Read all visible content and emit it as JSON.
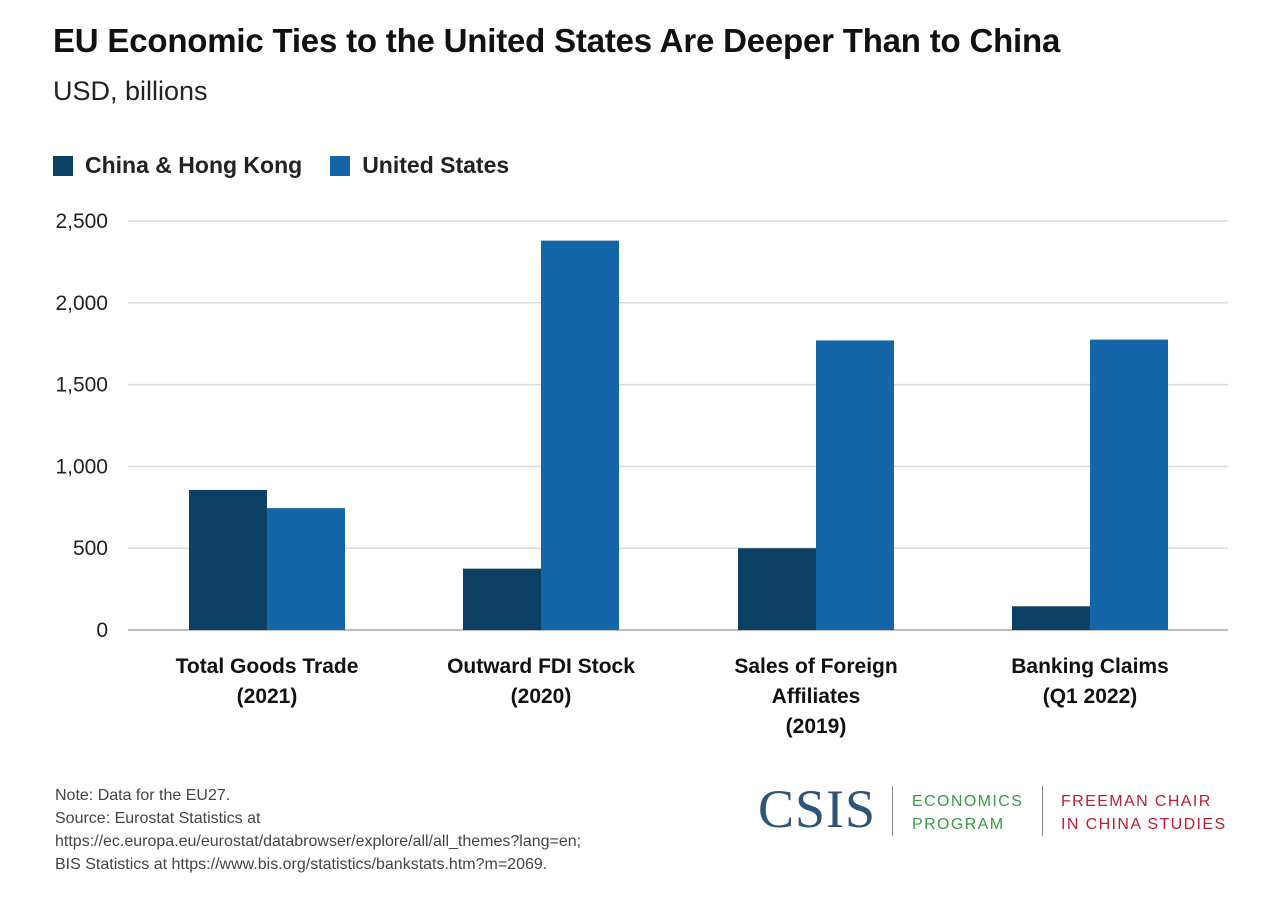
{
  "header": {
    "title": "EU Economic Ties to the United States Are Deeper Than to China",
    "subtitle": "USD, billions"
  },
  "chart_data": {
    "type": "bar",
    "categories": [
      [
        "Total Goods Trade",
        "(2021)"
      ],
      [
        "Outward FDI Stock",
        "(2020)"
      ],
      [
        "Sales of Foreign",
        "Affiliates",
        "(2019)"
      ],
      [
        "Banking Claims",
        "(Q1 2022)"
      ]
    ],
    "series": [
      {
        "name": "China & Hong Kong",
        "color": "#0b3f63",
        "values": [
          856,
          375,
          500,
          145
        ]
      },
      {
        "name": "United States",
        "color": "#1466a8",
        "values": [
          745,
          2380,
          1770,
          1775
        ]
      }
    ],
    "yticks": [
      "0",
      "500",
      "1,000",
      "1,500",
      "2,000",
      "2,500"
    ],
    "ylim": [
      0,
      2500
    ],
    "grid": true,
    "legend_position": "top-left"
  },
  "notes": {
    "note": "Note: Data for the EU27.",
    "source_line1": "Source: Eurostat Statistics at",
    "source_line2": "https://ec.europa.eu/eurostat/databrowser/explore/all/all_themes?lang=en;",
    "source_line3": "BIS Statistics at https://www.bis.org/statistics/bankstats.htm?m=2069."
  },
  "branding": {
    "logo": "CSIS",
    "program_line1": "ECONOMICS",
    "program_line2": "PROGRAM",
    "chair_line1": "FREEMAN CHAIR",
    "chair_line2": "IN CHINA STUDIES"
  }
}
